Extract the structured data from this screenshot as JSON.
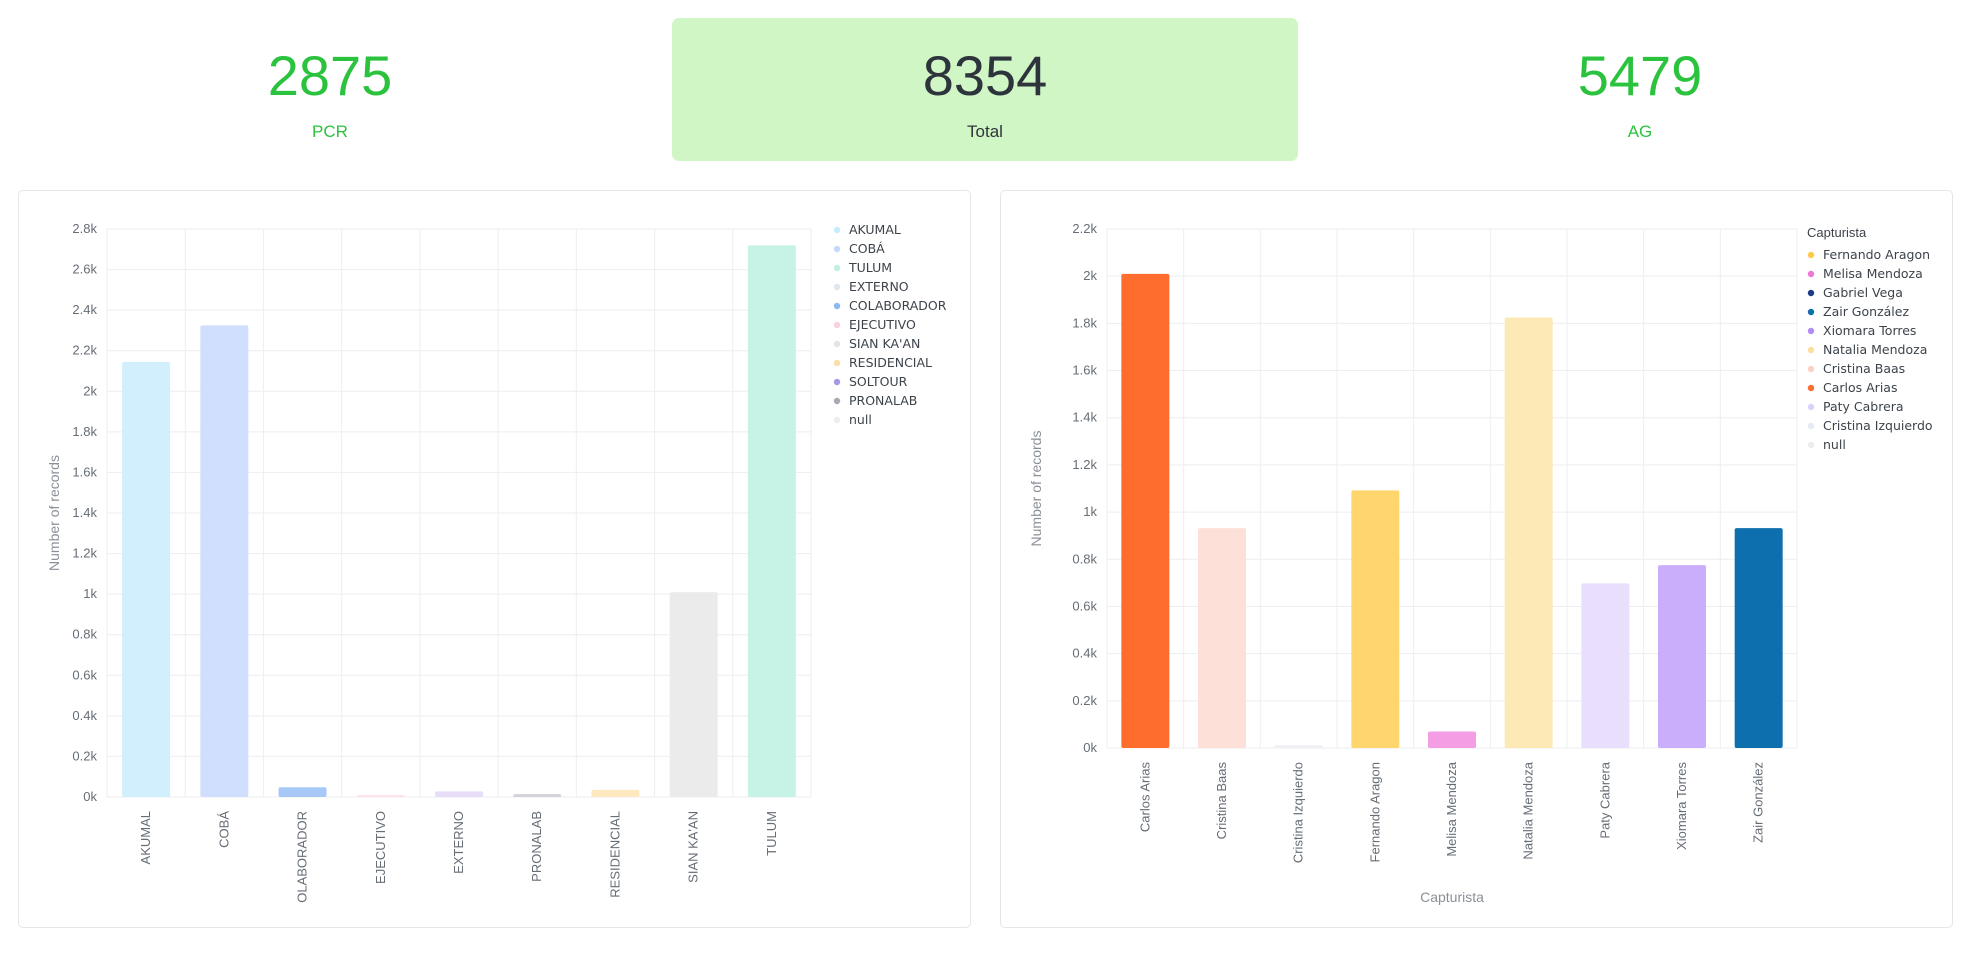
{
  "kpis": {
    "pcr": {
      "value": "2875",
      "label": "PCR"
    },
    "total": {
      "value": "8354",
      "label": "Total"
    },
    "ag": {
      "value": "5479",
      "label": "AG"
    }
  },
  "colors": {
    "kpi_green": "#2bc33e",
    "kpi_total_bg": "#d1f6c5"
  },
  "chart_data": [
    {
      "type": "bar",
      "title": "",
      "xlabel": "",
      "ylabel": "Number of records",
      "ylim": [
        0,
        2800
      ],
      "yticks": [
        "0k",
        "0.2k",
        "0.4k",
        "0.6k",
        "0.8k",
        "1k",
        "1.2k",
        "1.4k",
        "1.6k",
        "1.8k",
        "2k",
        "2.2k",
        "2.4k",
        "2.6k",
        "2.8k"
      ],
      "grid": true,
      "legend_position": "right",
      "categories": [
        "AKUMAL",
        "COBÁ",
        "OLABORADOR",
        "EJECUTIVO",
        "EXTERNO",
        "PRONALAB",
        "RESIDENCIAL",
        "SIAN KA'AN",
        "TULUM"
      ],
      "values": [
        2145,
        2325,
        48,
        5,
        28,
        14,
        35,
        1010,
        2720
      ],
      "bar_colors": [
        "#d1effc",
        "#d0dffd",
        "#a7c8f7",
        "#fce3ea",
        "#e7ddf9",
        "#d3d3d8",
        "#fde8bf",
        "#ebebeb",
        "#c6f3e5"
      ],
      "legend": [
        {
          "label": "AKUMAL",
          "color": "#c8ecfb"
        },
        {
          "label": "COBÁ",
          "color": "#c7d8fb"
        },
        {
          "label": "TULUM",
          "color": "#bff0e1"
        },
        {
          "label": "EXTERNO",
          "color": "#dfe6ee"
        },
        {
          "label": "COLABORADOR",
          "color": "#8cb8f0"
        },
        {
          "label": "EJECUTIVO",
          "color": "#f9d2dd"
        },
        {
          "label": "SIAN KA'AN",
          "color": "#e4e4e4"
        },
        {
          "label": "RESIDENCIAL",
          "color": "#fbdfa8"
        },
        {
          "label": "SOLTOUR",
          "color": "#a898e6"
        },
        {
          "label": "PRONALAB",
          "color": "#a9a9b3"
        },
        {
          "label": "null",
          "color": "#ededed"
        }
      ]
    },
    {
      "type": "bar",
      "title": "",
      "xlabel": "Capturista",
      "ylabel": "Number of records",
      "ylim": [
        0,
        2200
      ],
      "yticks": [
        "0k",
        "0.2k",
        "0.4k",
        "0.6k",
        "0.8k",
        "1k",
        "1.2k",
        "1.4k",
        "1.6k",
        "1.8k",
        "2k",
        "2.2k"
      ],
      "grid": true,
      "legend_position": "right",
      "legend_title": "Capturista",
      "categories": [
        "Carlos Arias",
        "Cristina Baas",
        "Cristina Izquierdo",
        "Fernando Aragon",
        "Melisa Mendoza",
        "Natalia Mendoza",
        "Paty Cabrera",
        "Xiomara Torres",
        "Zair González"
      ],
      "values": [
        2010,
        932,
        12,
        1092,
        70,
        1825,
        698,
        775,
        932
      ],
      "bar_colors": [
        "#ff6d2e",
        "#fde0d7",
        "#eef0f5",
        "#ffd66e",
        "#f49de5",
        "#fde9b6",
        "#e9dffd",
        "#cbaefb",
        "#0e6faf"
      ],
      "legend": [
        {
          "label": "Fernando Aragon",
          "color": "#ffc94a"
        },
        {
          "label": "Melisa Mendoza",
          "color": "#ee77d6"
        },
        {
          "label": "Gabriel Vega",
          "color": "#1d3b87"
        },
        {
          "label": "Zair González",
          "color": "#0e6faf"
        },
        {
          "label": "Xiomara Torres",
          "color": "#b08af7"
        },
        {
          "label": "Natalia Mendoza",
          "color": "#fbdf9d"
        },
        {
          "label": "Cristina Baas",
          "color": "#fbd1c3"
        },
        {
          "label": "Carlos Arias",
          "color": "#ff6d2e"
        },
        {
          "label": "Paty Cabrera",
          "color": "#ddd1fb"
        },
        {
          "label": "Cristina Izquierdo",
          "color": "#e6eaf2"
        },
        {
          "label": "null",
          "color": "#ededed"
        }
      ]
    }
  ]
}
